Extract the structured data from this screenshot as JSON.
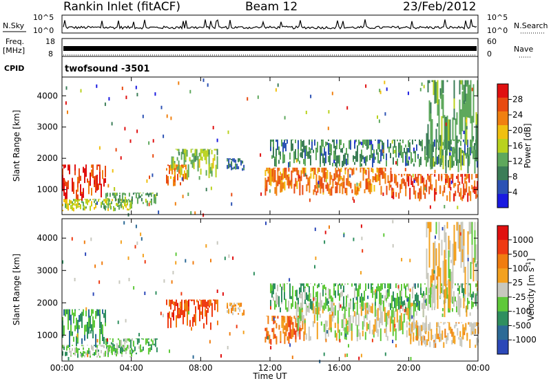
{
  "header": {
    "title": "Rankin Inlet (fitACF)",
    "beam": "Beam 12",
    "date": "23/Feb/2012"
  },
  "top_panels": {
    "nsky_label": "N.Sky",
    "nsearch_label": "N.Search",
    "noise_ticks": [
      "10^5",
      "10^0"
    ],
    "freq_label_1": "Freq.",
    "freq_label_2": "[MHz]",
    "freq_ticks": [
      "18",
      "8"
    ],
    "nave_label": "Nave",
    "nave_ticks": [
      "60",
      "0"
    ],
    "cpid_label": "CPID",
    "cpid_value": "twofsound -3501"
  },
  "colors": {
    "power_scale": [
      "#1a1ae0",
      "#2c52b4",
      "#3b7d57",
      "#5ea85c",
      "#b9d21e",
      "#f0c010",
      "#f08010",
      "#e84a10",
      "#e01010"
    ],
    "velocity_scale": [
      "#2c48b8",
      "#2c6a96",
      "#2f8f5f",
      "#5fc93a",
      "#c8c8be",
      "#f3a11f",
      "#f07d10",
      "#ee3a12",
      "#e01010"
    ],
    "noise_line": "#000000"
  },
  "chart_data": [
    {
      "type": "heatmap",
      "name": "power",
      "ylabel": "Slant Range [km]",
      "yticks": [
        1000,
        2000,
        3000,
        4000
      ],
      "ylim": [
        200,
        4600
      ],
      "xlim_hours": [
        0,
        24
      ],
      "colorbar": {
        "label": "Power [dB]",
        "ticks": [
          "28",
          "24",
          "20",
          "16",
          "12",
          "8",
          "4"
        ],
        "range": [
          0,
          32
        ]
      },
      "echo_regions": [
        {
          "t": [
            0.0,
            2.5
          ],
          "r": [
            600,
            1800
          ],
          "v": 28
        },
        {
          "t": [
            0.0,
            4.0
          ],
          "r": [
            300,
            700
          ],
          "v": 16
        },
        {
          "t": [
            2.5,
            5.5
          ],
          "r": [
            400,
            900
          ],
          "v": 12
        },
        {
          "t": [
            6.0,
            7.2
          ],
          "r": [
            1100,
            1800
          ],
          "v": 24
        },
        {
          "t": [
            6.3,
            9.0
          ],
          "r": [
            1300,
            2300
          ],
          "v": 14
        },
        {
          "t": [
            9.5,
            10.5
          ],
          "r": [
            1600,
            2000
          ],
          "v": 8
        },
        {
          "t": [
            11.7,
            19.0
          ],
          "r": [
            800,
            1700
          ],
          "v": 24
        },
        {
          "t": [
            12.0,
            24.0
          ],
          "r": [
            1700,
            2600
          ],
          "v": 10
        },
        {
          "t": [
            19.0,
            24.0
          ],
          "r": [
            600,
            1500
          ],
          "v": 26
        },
        {
          "t": [
            21.0,
            24.0
          ],
          "r": [
            1500,
            4500
          ],
          "v": 12
        }
      ]
    },
    {
      "type": "heatmap",
      "name": "velocity",
      "ylabel": "Slant Range [km]",
      "xlabel": "Time UT",
      "xticks": [
        "00:00",
        "04:00",
        "08:00",
        "12:00",
        "16:00",
        "20:00",
        "00:00"
      ],
      "yticks": [
        1000,
        2000,
        3000,
        4000
      ],
      "ylim": [
        200,
        4600
      ],
      "xlim_hours": [
        0,
        24
      ],
      "colorbar": {
        "label": "Velocity [m s^-1]",
        "ticks": [
          "1000",
          "500",
          "100",
          "25",
          "-25",
          "-100",
          "-500",
          "-1000"
        ],
        "range": [
          -1000,
          1000
        ]
      },
      "echo_regions": [
        {
          "t": [
            0.0,
            2.5
          ],
          "r": [
            600,
            1800
          ],
          "v": -400
        },
        {
          "t": [
            0.0,
            4.0
          ],
          "r": [
            300,
            700
          ],
          "v": -150
        },
        {
          "t": [
            2.5,
            5.5
          ],
          "r": [
            400,
            900
          ],
          "v": -300
        },
        {
          "t": [
            6.0,
            9.0
          ],
          "r": [
            1100,
            2100
          ],
          "v": 600
        },
        {
          "t": [
            9.5,
            10.5
          ],
          "r": [
            1600,
            2000
          ],
          "v": 200
        },
        {
          "t": [
            11.7,
            14.0
          ],
          "r": [
            700,
            1600
          ],
          "v": 500
        },
        {
          "t": [
            13.5,
            21.0
          ],
          "r": [
            800,
            2000
          ],
          "v": 0
        },
        {
          "t": [
            12.0,
            24.0
          ],
          "r": [
            1700,
            2600
          ],
          "v": -250
        },
        {
          "t": [
            20.0,
            24.0
          ],
          "r": [
            600,
            1400
          ],
          "v": 150
        },
        {
          "t": [
            21.0,
            24.0
          ],
          "r": [
            1500,
            4500
          ],
          "v": 100
        }
      ]
    }
  ]
}
